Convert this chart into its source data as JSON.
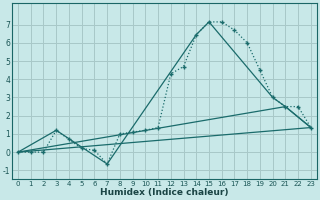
{
  "xlabel": "Humidex (Indice chaleur)",
  "background_color": "#c8e8e8",
  "grid_color": "#a8c8c8",
  "line_color": "#1a6b6b",
  "xlim": [
    -0.5,
    23.5
  ],
  "ylim": [
    -1.5,
    8.2
  ],
  "xticks": [
    0,
    1,
    2,
    3,
    4,
    5,
    6,
    7,
    8,
    9,
    10,
    11,
    12,
    13,
    14,
    15,
    16,
    17,
    18,
    19,
    20,
    21,
    22,
    23
  ],
  "yticks": [
    -1,
    0,
    1,
    2,
    3,
    4,
    5,
    6,
    7
  ],
  "main_x": [
    0,
    1,
    2,
    3,
    4,
    5,
    6,
    7,
    8,
    9,
    10,
    11,
    12,
    13,
    14,
    15,
    16,
    17,
    18,
    19,
    20,
    21,
    22,
    23
  ],
  "main_y": [
    0.0,
    0.0,
    0.0,
    1.2,
    0.7,
    0.2,
    0.1,
    -0.65,
    1.0,
    1.1,
    1.2,
    1.35,
    4.3,
    4.7,
    6.45,
    7.15,
    7.15,
    6.7,
    6.0,
    4.5,
    3.0,
    2.5,
    2.5,
    1.35
  ],
  "line1_x": [
    0,
    3,
    7,
    14,
    15,
    20,
    21,
    23
  ],
  "line1_y": [
    0.0,
    1.2,
    -0.65,
    6.45,
    7.15,
    3.0,
    2.5,
    1.35
  ],
  "line2_x": [
    0,
    23
  ],
  "line2_y": [
    0.0,
    1.35
  ],
  "line3_x": [
    0,
    21,
    23
  ],
  "line3_y": [
    0.0,
    2.5,
    1.35
  ]
}
